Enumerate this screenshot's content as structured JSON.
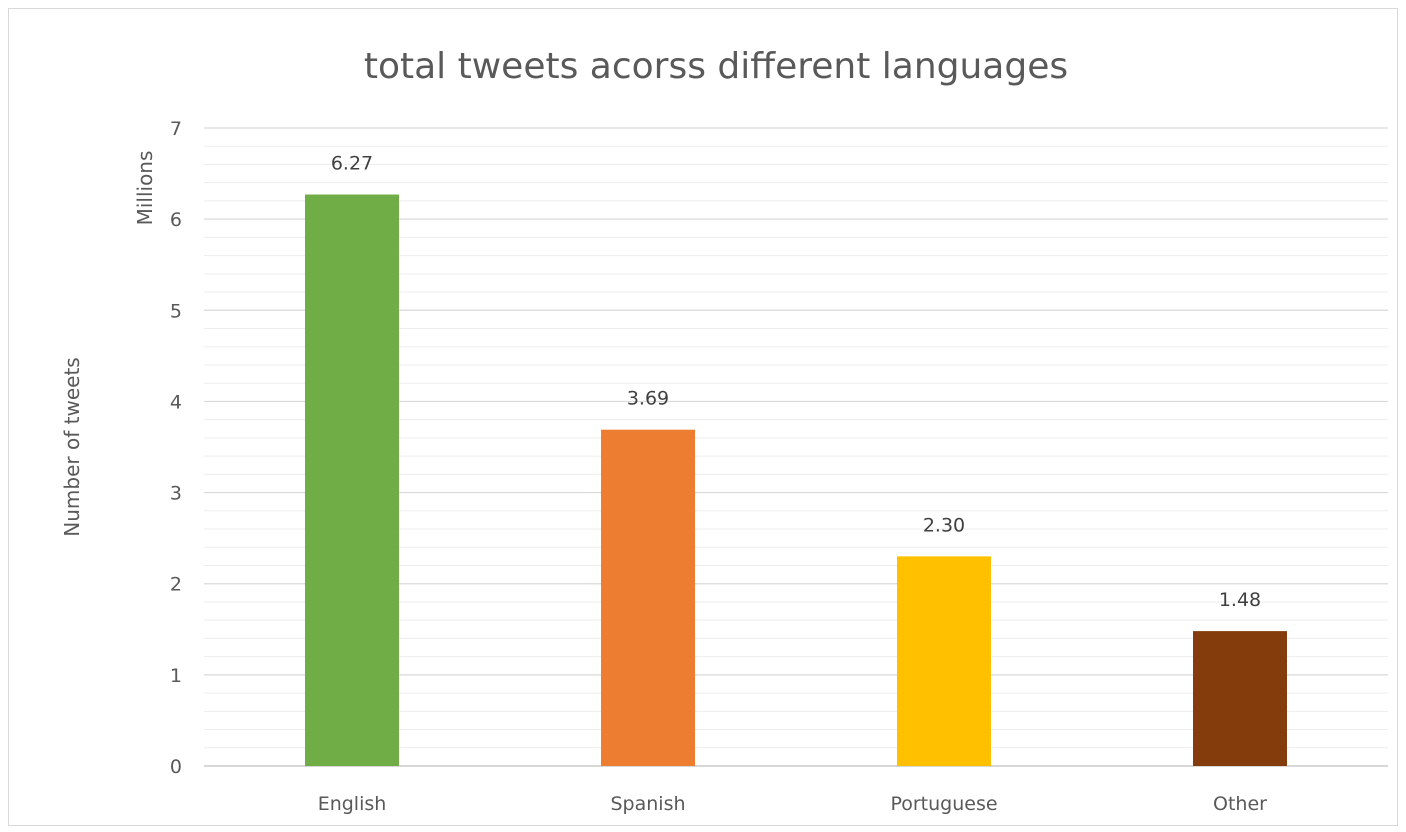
{
  "chart_data": {
    "type": "bar",
    "title": "total tweets acorss different languages",
    "xlabel": "",
    "ylabel": "Number of tweets",
    "yunit_label": "Millions",
    "categories": [
      "English",
      "Spanish",
      "Portuguese",
      "Other"
    ],
    "values": [
      6.27,
      3.69,
      2.3,
      1.48
    ],
    "data_labels": [
      "6.27",
      "3.69",
      "2.30",
      "1.48"
    ],
    "ylim": [
      0,
      7
    ],
    "yticks": [
      "0",
      "1",
      "2",
      "3",
      "4",
      "5",
      "6",
      "7"
    ],
    "major_gridlines": true,
    "minor_gridlines": true,
    "legend": "none",
    "colors": [
      "#70AD47",
      "#ED7D31",
      "#FFC000",
      "#843C0C"
    ]
  }
}
